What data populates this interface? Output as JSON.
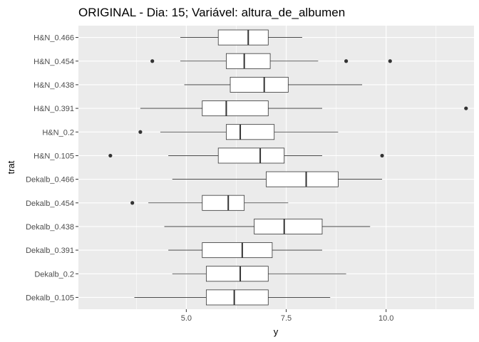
{
  "chart_data": {
    "type": "boxplot",
    "orientation": "horizontal",
    "title": "ORIGINAL - Dia: 15; Variável: altura_de_albumen",
    "xlabel": "y",
    "ylabel": "trat",
    "xlim": [
      2.3,
      12.2
    ],
    "x_ticks": [
      5.0,
      7.5,
      10.0
    ],
    "x_tick_labels": [
      "5.0",
      "7.5",
      "10.0"
    ],
    "grid": true,
    "background": "#ebebeb",
    "categories": [
      "H&N_0.466",
      "H&N_0.454",
      "H&N_0.438",
      "H&N_0.391",
      "H&N_0.2",
      "H&N_0.105",
      "Dekalb_0.466",
      "Dekalb_0.454",
      "Dekalb_0.438",
      "Dekalb_0.391",
      "Dekalb_0.2",
      "Dekalb_0.105"
    ],
    "boxes": [
      {
        "label": "H&N_0.466",
        "whisker_low": 4.85,
        "q1": 5.8,
        "median": 6.55,
        "q3": 7.05,
        "whisker_high": 7.9,
        "outliers": []
      },
      {
        "label": "H&N_0.454",
        "whisker_low": 4.85,
        "q1": 6.0,
        "median": 6.45,
        "q3": 7.1,
        "whisker_high": 8.3,
        "outliers": [
          4.15,
          9.0,
          10.1
        ]
      },
      {
        "label": "H&N_0.438",
        "whisker_low": 4.95,
        "q1": 6.1,
        "median": 6.95,
        "q3": 7.55,
        "whisker_high": 9.4,
        "outliers": []
      },
      {
        "label": "H&N_0.391",
        "whisker_low": 3.85,
        "q1": 5.4,
        "median": 6.0,
        "q3": 7.05,
        "whisker_high": 8.4,
        "outliers": [
          12.0
        ]
      },
      {
        "label": "H&N_0.2",
        "whisker_low": 4.35,
        "q1": 6.0,
        "median": 6.35,
        "q3": 7.2,
        "whisker_high": 8.8,
        "outliers": [
          3.85
        ]
      },
      {
        "label": "H&N_0.105",
        "whisker_low": 4.55,
        "q1": 5.8,
        "median": 6.85,
        "q3": 7.45,
        "whisker_high": 8.4,
        "outliers": [
          3.1,
          9.9
        ]
      },
      {
        "label": "Dekalb_0.466",
        "whisker_low": 4.65,
        "q1": 7.0,
        "median": 8.0,
        "q3": 8.8,
        "whisker_high": 9.9,
        "outliers": []
      },
      {
        "label": "Dekalb_0.454",
        "whisker_low": 4.05,
        "q1": 5.4,
        "median": 6.05,
        "q3": 6.45,
        "whisker_high": 7.55,
        "outliers": [
          3.65
        ]
      },
      {
        "label": "Dekalb_0.438",
        "whisker_low": 4.45,
        "q1": 6.7,
        "median": 7.45,
        "q3": 8.4,
        "whisker_high": 9.6,
        "outliers": []
      },
      {
        "label": "Dekalb_0.391",
        "whisker_low": 4.55,
        "q1": 5.4,
        "median": 6.4,
        "q3": 7.15,
        "whisker_high": 8.4,
        "outliers": []
      },
      {
        "label": "Dekalb_0.2",
        "whisker_low": 4.65,
        "q1": 5.5,
        "median": 6.35,
        "q3": 7.05,
        "whisker_high": 9.0,
        "outliers": []
      },
      {
        "label": "Dekalb_0.105",
        "whisker_low": 3.7,
        "q1": 5.5,
        "median": 6.2,
        "q3": 7.05,
        "whisker_high": 8.6,
        "outliers": []
      }
    ]
  }
}
